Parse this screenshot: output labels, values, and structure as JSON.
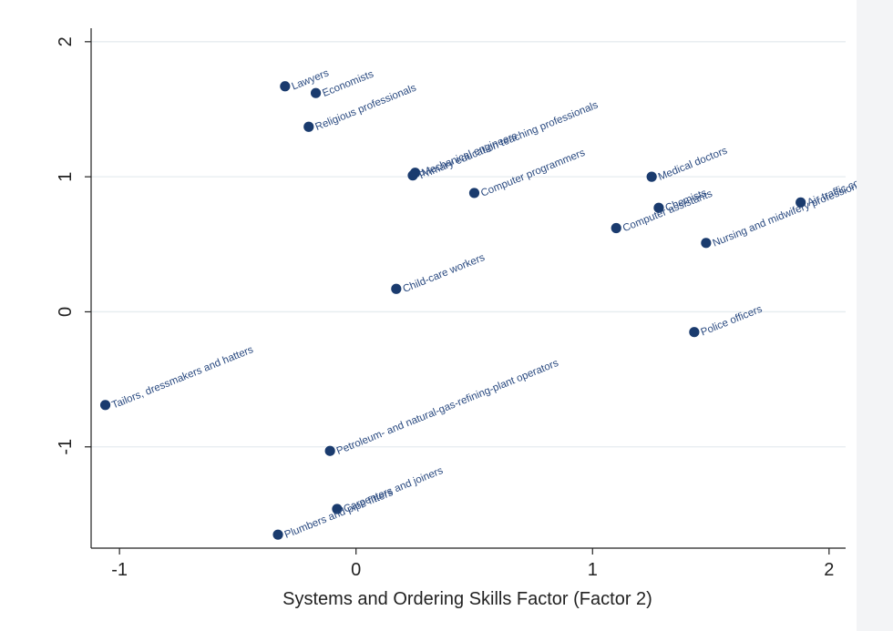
{
  "chart_data": {
    "type": "scatter",
    "title": "",
    "xlabel": "Systems and Ordering Skills Factor (Factor 2)",
    "ylabel": "",
    "xlim": [
      -1.12,
      2.07
    ],
    "ylim": [
      -1.75,
      2.1
    ],
    "xticks": [
      -1,
      0,
      1,
      2
    ],
    "yticks": [
      -1,
      0,
      1,
      2
    ],
    "xtick_labels": [
      "-1",
      "0",
      "1",
      "2"
    ],
    "ytick_labels": [
      "-1",
      "0",
      "1",
      "2"
    ],
    "grid": "horizontal",
    "marker_color": "#1a3b6e",
    "label_color": "#2a4a80",
    "points": [
      {
        "label": "Lawyers",
        "x": -0.3,
        "y": 1.67
      },
      {
        "label": "Economists",
        "x": -0.17,
        "y": 1.62
      },
      {
        "label": "Religious professionals",
        "x": -0.2,
        "y": 1.37
      },
      {
        "label": "Mechanical engineers",
        "x": 0.25,
        "y": 1.03
      },
      {
        "label": "Primary education teaching professionals",
        "x": 0.24,
        "y": 1.01
      },
      {
        "label": "Computer programmers",
        "x": 0.5,
        "y": 0.88
      },
      {
        "label": "Medical doctors",
        "x": 1.25,
        "y": 1.0
      },
      {
        "label": "Chemists",
        "x": 1.28,
        "y": 0.77
      },
      {
        "label": "Computer assistants",
        "x": 1.1,
        "y": 0.62
      },
      {
        "label": "Nursing and midwifery professionals",
        "x": 1.48,
        "y": 0.51
      },
      {
        "label": "Air traffic controllers",
        "x": 1.88,
        "y": 0.81
      },
      {
        "label": "Child-care workers",
        "x": 0.17,
        "y": 0.17
      },
      {
        "label": "Police officers",
        "x": 1.43,
        "y": -0.15
      },
      {
        "label": "Tailors, dressmakers and hatters",
        "x": -1.06,
        "y": -0.69
      },
      {
        "label": "Petroleum- and natural-gas-refining-plant operators",
        "x": -0.11,
        "y": -1.03
      },
      {
        "label": "Carpenters and joiners",
        "x": -0.08,
        "y": -1.46
      },
      {
        "label": "Plumbers and pipe fitters",
        "x": -0.33,
        "y": -1.65
      }
    ]
  }
}
